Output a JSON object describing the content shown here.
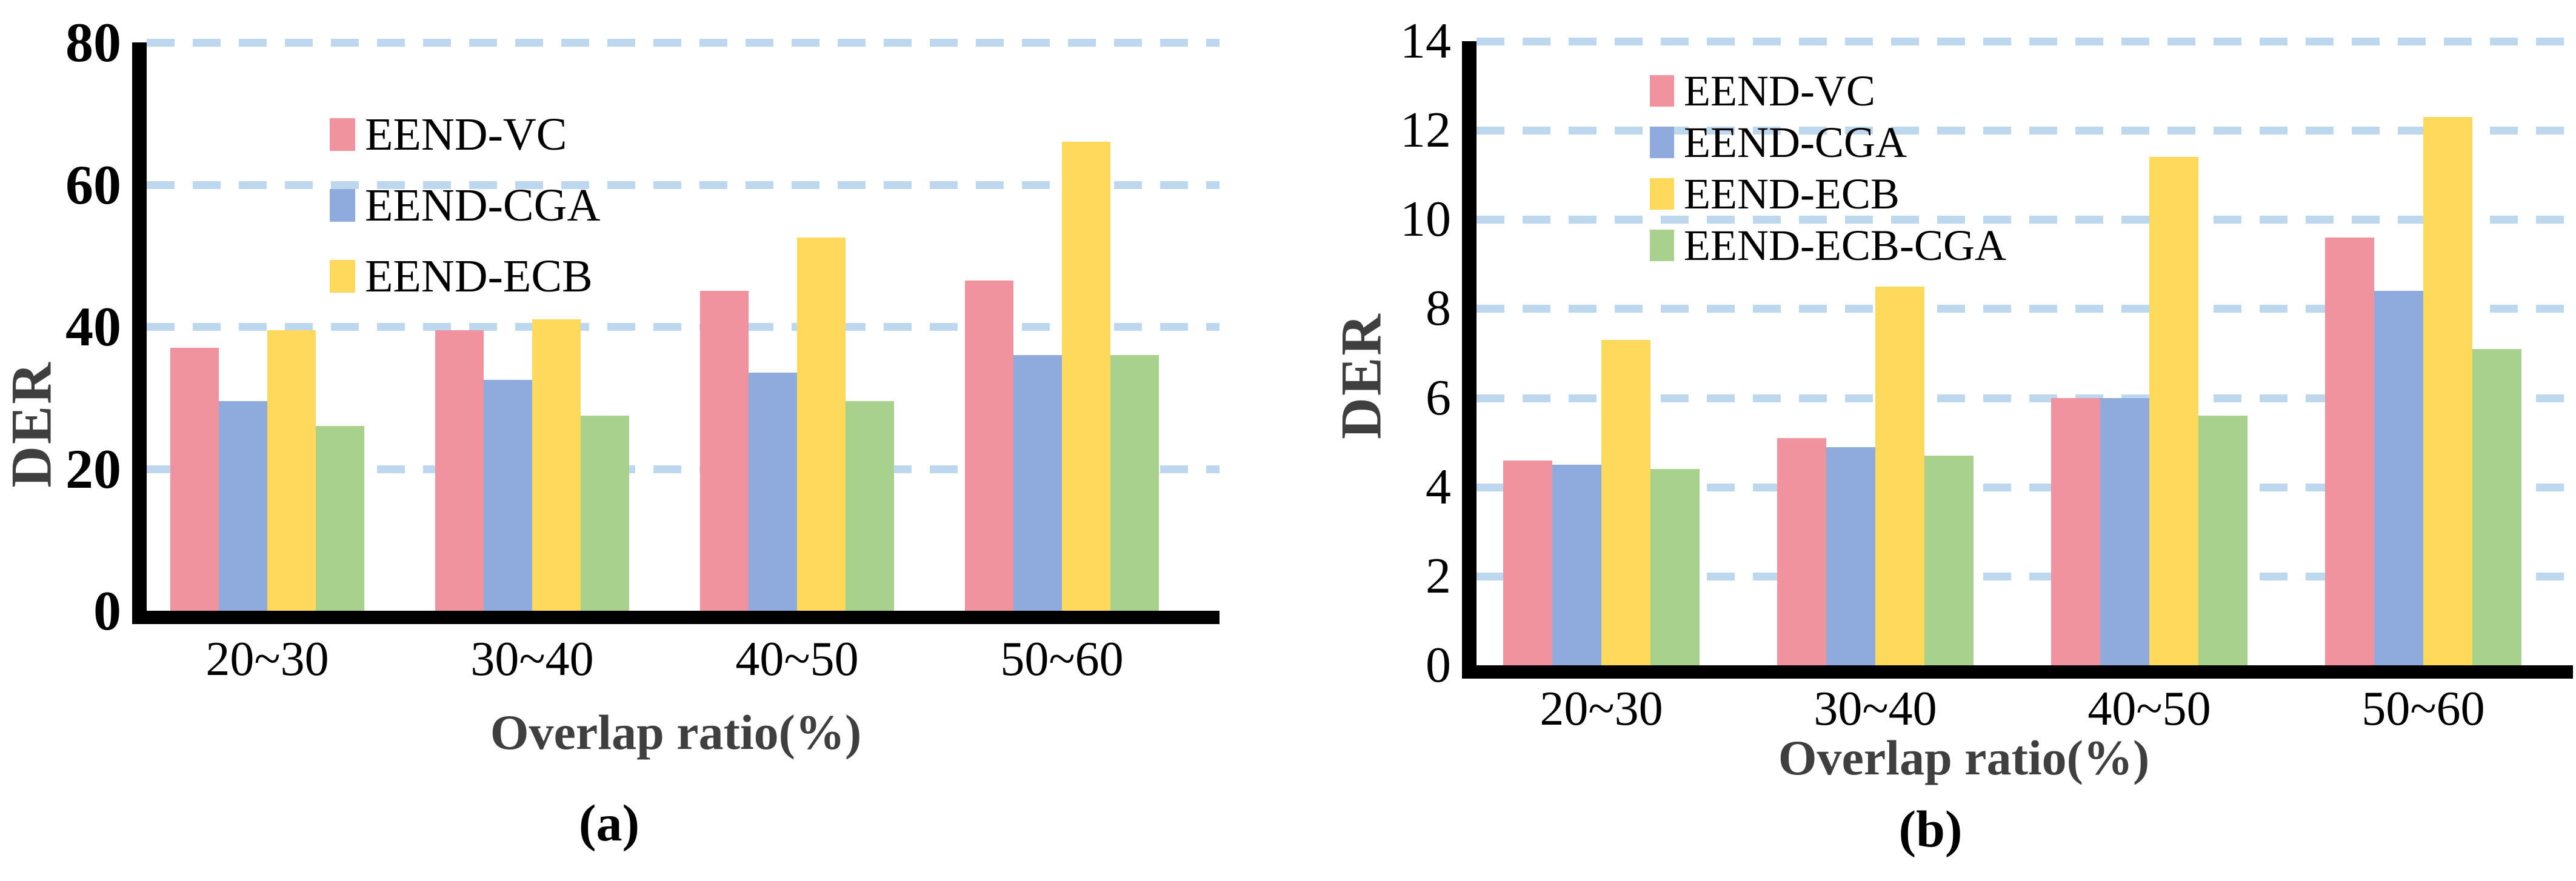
{
  "figure": {
    "background": "#FFFFFF",
    "grid_color": "#BDD7EE",
    "axis_color": "#000000",
    "label_gray": "#3F3F3F"
  },
  "chart_data": [
    {
      "type": "bar",
      "panel": "left",
      "caption": "(a)",
      "xlabel": "Overlap ratio(%)",
      "ylabel": "DER",
      "categories": [
        "20~30",
        "30~40",
        "40~50",
        "50~60"
      ],
      "series": [
        {
          "name": "EEND-VC",
          "color": "#F0939F",
          "values": [
            37,
            39.5,
            45,
            46.5
          ]
        },
        {
          "name": "EEND-CGA",
          "color": "#8FAADC",
          "values": [
            29.5,
            32.5,
            33.5,
            36
          ]
        },
        {
          "name": "EEND-ECB",
          "color": "#FFD95C",
          "values": [
            39.5,
            41,
            52.5,
            66
          ]
        },
        {
          "name": "EEND-ECB-CGA",
          "color": "#A9D18E",
          "values": [
            26,
            27.5,
            29.5,
            36
          ]
        }
      ],
      "legend": [
        "EEND-VC",
        "EEND-CGA",
        "EEND-ECB"
      ],
      "legend_position": "inside-upper-left",
      "ylim": [
        0,
        80
      ],
      "yticks": [
        0,
        20,
        40,
        60,
        80
      ],
      "grid_values": [
        20,
        40,
        60,
        80
      ],
      "grid": "dashed-horizontal"
    },
    {
      "type": "bar",
      "panel": "right",
      "caption": "(b)",
      "xlabel": "Overlap ratio(%)",
      "ylabel": "DER",
      "categories": [
        "20~30",
        "30~40",
        "40~50",
        "50~60"
      ],
      "series": [
        {
          "name": "EEND-VC",
          "color": "#F0939F",
          "values": [
            4.6,
            5.1,
            6,
            9.6
          ]
        },
        {
          "name": "EEND-CGA",
          "color": "#8FAADC",
          "values": [
            4.5,
            4.9,
            6,
            8.4
          ]
        },
        {
          "name": "EEND-ECB",
          "color": "#FFD95C",
          "values": [
            7.3,
            8.5,
            11.4,
            12.3
          ]
        },
        {
          "name": "EEND-ECB-CGA",
          "color": "#A9D18E",
          "values": [
            4.4,
            4.7,
            5.6,
            7.1
          ]
        }
      ],
      "legend": [
        "EEND-VC",
        "EEND-CGA",
        "EEND-ECB",
        "EEND-ECB-CGA"
      ],
      "legend_position": "inside-upper-left",
      "ylim": [
        0,
        14
      ],
      "yticks": [
        0,
        2,
        4,
        6,
        8,
        10,
        12,
        14
      ],
      "grid_values": [
        2,
        4,
        6,
        8,
        10,
        12,
        14
      ],
      "grid": "dashed-horizontal"
    }
  ]
}
